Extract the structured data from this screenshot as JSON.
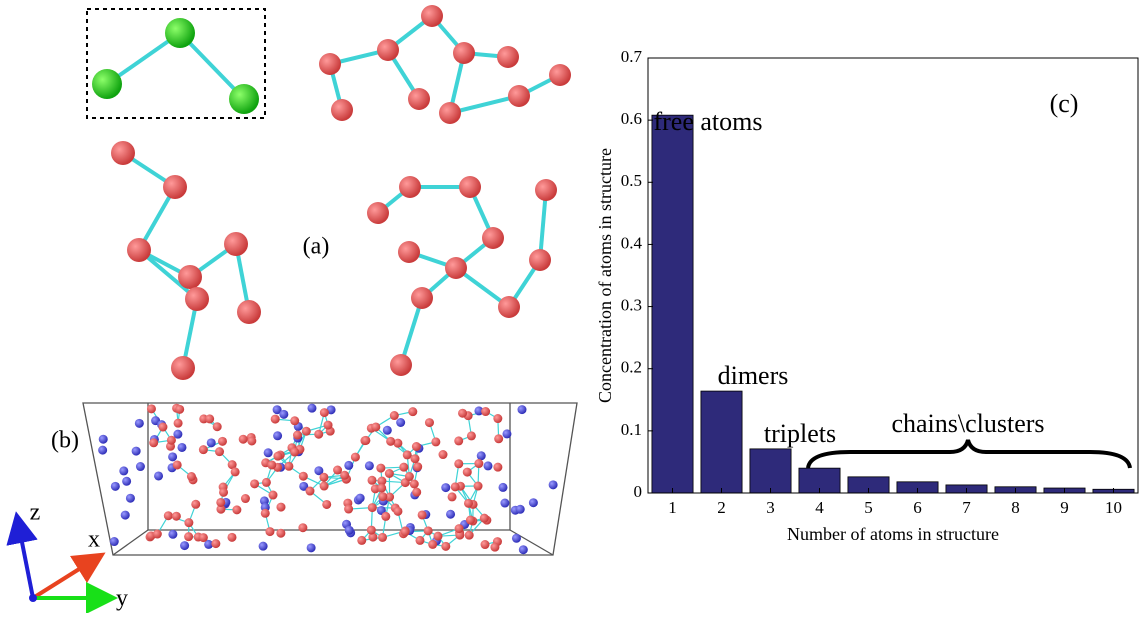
{
  "chart_data": {
    "type": "bar",
    "categories": [
      "1",
      "2",
      "3",
      "4",
      "5",
      "6",
      "7",
      "8",
      "9",
      "10"
    ],
    "values": [
      0.608,
      0.164,
      0.071,
      0.04,
      0.026,
      0.018,
      0.013,
      0.01,
      0.008,
      0.006
    ],
    "color": "#2e2a7a",
    "ylim": [
      0,
      0.7
    ],
    "yticks": [
      0,
      0.1,
      0.2,
      0.3,
      0.4,
      0.5,
      0.6,
      0.7
    ],
    "x_label": "Number of atoms in structure",
    "y_label": "Concentration of atoms in structure",
    "annotations": [
      "free atoms",
      "dimers",
      "triplets",
      "chains\\clusters",
      "(c)"
    ]
  },
  "panel_labels": [
    "(a)",
    "(b)"
  ],
  "axis_triad": [
    "z",
    "x",
    "y"
  ]
}
